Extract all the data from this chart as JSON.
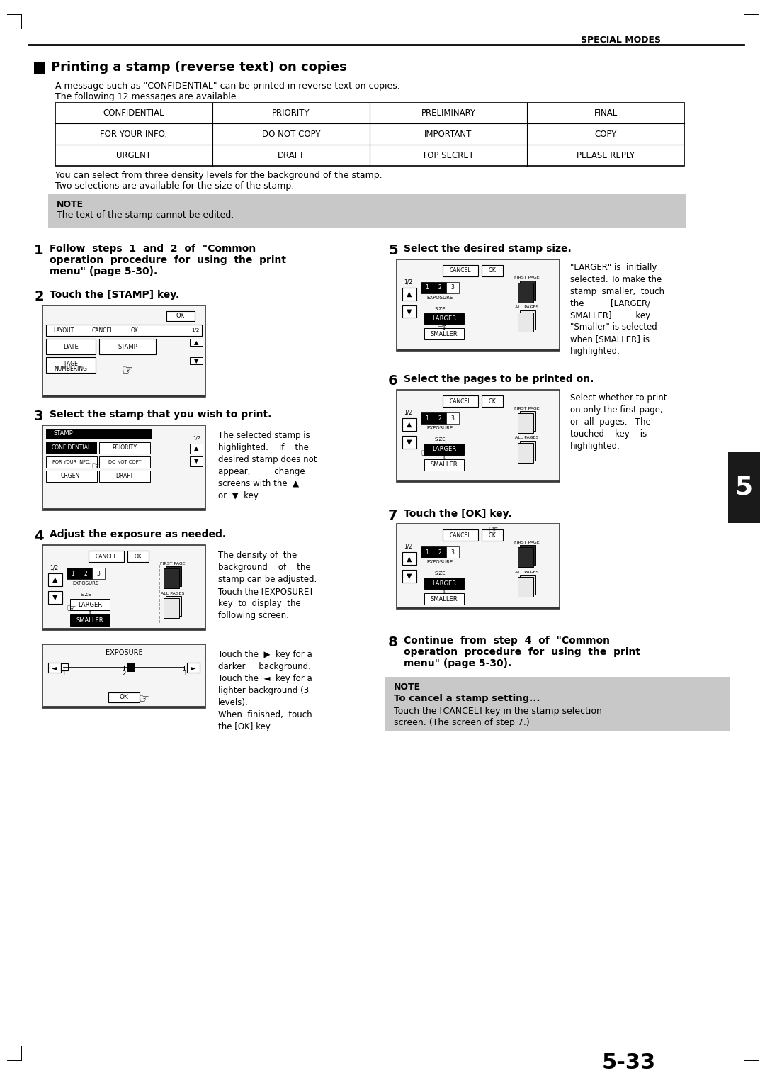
{
  "page_header": "SPECIAL MODES",
  "title": "Printing a stamp (reverse text) on copies",
  "intro_lines": [
    "A message such as \"CONFIDENTIAL\" can be printed in reverse text on copies.",
    "The following 12 messages are available."
  ],
  "table_data": [
    [
      "CONFIDENTIAL",
      "PRIORITY",
      "PRELIMINARY",
      "FINAL"
    ],
    [
      "FOR YOUR INFO.",
      "DO NOT COPY",
      "IMPORTANT",
      "COPY"
    ],
    [
      "URGENT",
      "DRAFT",
      "TOP SECRET",
      "PLEASE REPLY"
    ]
  ],
  "body_text": [
    "You can select from three density levels for the background of the stamp.",
    "Two selections are available for the size of the stamp."
  ],
  "note1_title": "NOTE",
  "note1_text": "The text of the stamp cannot be edited.",
  "note2_title": "NOTE",
  "note2_title2": "To cancel a stamp setting...",
  "note2_text": "Touch the [CANCEL] key in the stamp selection screen. (The screen of step 7.)",
  "page_number": "5-33",
  "tab_number": "5",
  "bg_color": "#ffffff",
  "note_bg": "#c8c8c8",
  "tab_bg": "#1a1a1a"
}
